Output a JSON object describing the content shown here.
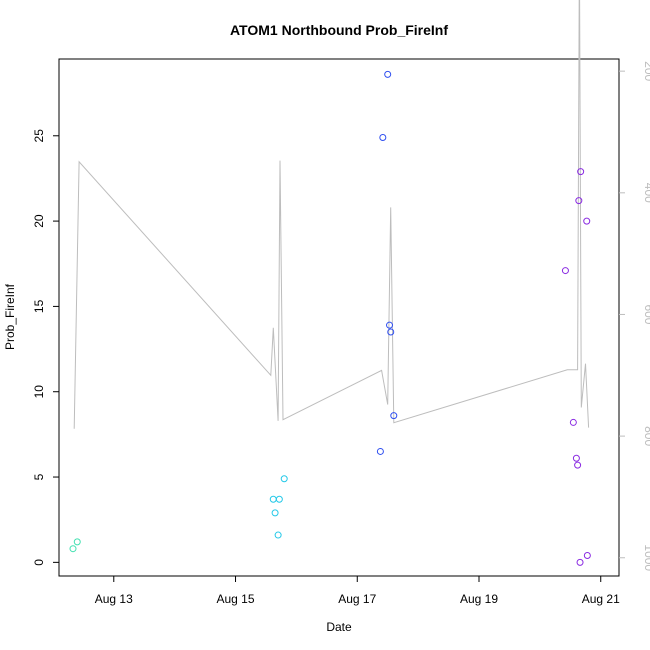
{
  "chart_data": {
    "type": "scatter",
    "title": "ATOM1 Northbound Prob_FireInf",
    "xlabel": "Date",
    "ylabel": "Prob_FireInf",
    "x_ticks": [
      "Aug 13",
      "Aug 15",
      "Aug 17",
      "Aug 19",
      "Aug 21"
    ],
    "x_tick_values": [
      13,
      15,
      17,
      19,
      21
    ],
    "xlim": [
      12.1,
      21.3
    ],
    "ylim": [
      -0.8,
      29.5
    ],
    "y_ticks": [
      0,
      5,
      10,
      15,
      20,
      25
    ],
    "y_right_ticks": [
      200,
      400,
      600,
      800,
      1000
    ],
    "y_right_lim": [
      1030,
      180
    ],
    "grid": false,
    "points": [
      {
        "x": 12.33,
        "y": 0.8,
        "color": "#40e0b0"
      },
      {
        "x": 12.4,
        "y": 1.2,
        "color": "#40e0b0"
      },
      {
        "x": 15.62,
        "y": 3.7,
        "color": "#22c8e8"
      },
      {
        "x": 15.65,
        "y": 2.9,
        "color": "#22c8e8"
      },
      {
        "x": 15.7,
        "y": 1.6,
        "color": "#22c8e8"
      },
      {
        "x": 15.72,
        "y": 3.7,
        "color": "#22c8e8"
      },
      {
        "x": 15.8,
        "y": 4.9,
        "color": "#22c8e8"
      },
      {
        "x": 17.38,
        "y": 6.5,
        "color": "#2f4ff0"
      },
      {
        "x": 17.42,
        "y": 24.9,
        "color": "#2f4ff0"
      },
      {
        "x": 17.5,
        "y": 28.6,
        "color": "#2f4ff0"
      },
      {
        "x": 17.53,
        "y": 13.9,
        "color": "#2f4ff0"
      },
      {
        "x": 17.55,
        "y": 13.5,
        "color": "#2f4ff0"
      },
      {
        "x": 17.6,
        "y": 8.6,
        "color": "#2f4ff0"
      },
      {
        "x": 20.42,
        "y": 17.1,
        "color": "#8a2be2"
      },
      {
        "x": 20.55,
        "y": 8.2,
        "color": "#8a2be2"
      },
      {
        "x": 20.6,
        "y": 6.1,
        "color": "#8a2be2"
      },
      {
        "x": 20.62,
        "y": 5.7,
        "color": "#8a2be2"
      },
      {
        "x": 20.64,
        "y": 21.2,
        "color": "#8a2be2"
      },
      {
        "x": 20.66,
        "y": 0.0,
        "color": "#8a2be2"
      },
      {
        "x": 20.67,
        "y": 22.9,
        "color": "#8a2be2"
      },
      {
        "x": 20.77,
        "y": 20.0,
        "color": "#8a2be2"
      },
      {
        "x": 20.78,
        "y": 0.4,
        "color": "#8a2be2"
      }
    ],
    "line_series": {
      "color": "#bdbdbd",
      "x": [
        12.35,
        12.43,
        15.58,
        15.62,
        15.7,
        15.73,
        15.78,
        17.4,
        17.5,
        17.55,
        17.6,
        20.45,
        20.62,
        20.65,
        20.68,
        20.75,
        20.8
      ],
      "y": [
        788,
        349,
        700,
        622,
        775,
        347,
        773,
        692,
        748,
        424,
        778,
        691,
        691,
        0,
        753,
        681,
        786
      ]
    }
  }
}
